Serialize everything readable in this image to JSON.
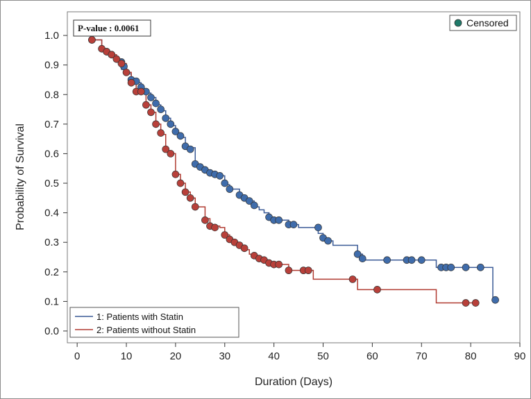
{
  "chart_data": {
    "type": "line",
    "subtype": "kaplan-meier",
    "xlabel": "Duration (Days)",
    "ylabel": "Probability of Survival",
    "xlim": [
      -2,
      90
    ],
    "ylim": [
      -0.04,
      1.08
    ],
    "x_ticks": [
      0,
      10,
      20,
      30,
      40,
      50,
      60,
      70,
      80,
      90
    ],
    "y_ticks": [
      0.0,
      0.1,
      0.2,
      0.3,
      0.4,
      0.5,
      0.6,
      0.7,
      0.8,
      0.9,
      1.0
    ],
    "annotation": "P-value : 0.0061",
    "censored_legend": "Censored",
    "censored_color": "#1f7a6a",
    "series": [
      {
        "name": "1: Patients with Statin",
        "color": "#3a5a96",
        "marker_color": "#3f6cab",
        "steps": [
          [
            0,
            1.0
          ],
          [
            3,
            0.985
          ],
          [
            5,
            0.955
          ],
          [
            6,
            0.94
          ],
          [
            7,
            0.93
          ],
          [
            8,
            0.91
          ],
          [
            9,
            0.885
          ],
          [
            10,
            0.87
          ],
          [
            11,
            0.85
          ],
          [
            12,
            0.84
          ],
          [
            13,
            0.82
          ],
          [
            14,
            0.805
          ],
          [
            15,
            0.79
          ],
          [
            16,
            0.765
          ],
          [
            17,
            0.745
          ],
          [
            18,
            0.72
          ],
          [
            19,
            0.695
          ],
          [
            20,
            0.67
          ],
          [
            21,
            0.655
          ],
          [
            22,
            0.62
          ],
          [
            24,
            0.565
          ],
          [
            25,
            0.555
          ],
          [
            26,
            0.54
          ],
          [
            27,
            0.53
          ],
          [
            29,
            0.525
          ],
          [
            30,
            0.495
          ],
          [
            31,
            0.48
          ],
          [
            33,
            0.46
          ],
          [
            34,
            0.45
          ],
          [
            35,
            0.44
          ],
          [
            36,
            0.42
          ],
          [
            37,
            0.41
          ],
          [
            38,
            0.4
          ],
          [
            39,
            0.385
          ],
          [
            40,
            0.375
          ],
          [
            43,
            0.36
          ],
          [
            45,
            0.35
          ],
          [
            49,
            0.33
          ],
          [
            50,
            0.305
          ],
          [
            52,
            0.29
          ],
          [
            57,
            0.26
          ],
          [
            58,
            0.24
          ],
          [
            73,
            0.215
          ],
          [
            82,
            0.215
          ],
          [
            84.5,
            0.105
          ],
          [
            85,
            0.105
          ]
        ],
        "censored": [
          [
            3,
            0.985
          ],
          [
            6,
            0.945
          ],
          [
            7,
            0.935
          ],
          [
            9,
            0.91
          ],
          [
            9.5,
            0.895
          ],
          [
            11,
            0.85
          ],
          [
            12,
            0.845
          ],
          [
            13,
            0.825
          ],
          [
            14,
            0.81
          ],
          [
            15,
            0.79
          ],
          [
            16,
            0.77
          ],
          [
            17,
            0.75
          ],
          [
            18,
            0.72
          ],
          [
            19,
            0.7
          ],
          [
            20,
            0.675
          ],
          [
            21,
            0.66
          ],
          [
            22,
            0.625
          ],
          [
            23,
            0.615
          ],
          [
            24,
            0.565
          ],
          [
            25,
            0.555
          ],
          [
            26,
            0.545
          ],
          [
            27,
            0.535
          ],
          [
            28,
            0.53
          ],
          [
            29,
            0.525
          ],
          [
            30,
            0.5
          ],
          [
            31,
            0.48
          ],
          [
            33,
            0.46
          ],
          [
            34,
            0.45
          ],
          [
            35,
            0.44
          ],
          [
            36,
            0.425
          ],
          [
            39,
            0.385
          ],
          [
            40,
            0.375
          ],
          [
            41,
            0.375
          ],
          [
            43,
            0.36
          ],
          [
            44,
            0.36
          ],
          [
            49,
            0.35
          ],
          [
            50,
            0.315
          ],
          [
            51,
            0.305
          ],
          [
            57,
            0.26
          ],
          [
            58,
            0.245
          ],
          [
            63,
            0.24
          ],
          [
            67,
            0.24
          ],
          [
            68,
            0.24
          ],
          [
            70,
            0.24
          ],
          [
            74,
            0.215
          ],
          [
            75,
            0.215
          ],
          [
            76,
            0.215
          ],
          [
            79,
            0.215
          ],
          [
            82,
            0.215
          ],
          [
            85,
            0.105
          ]
        ]
      },
      {
        "name": "2: Patients without Statin",
        "color": "#b03a30",
        "marker_color": "#b8403a",
        "steps": [
          [
            0,
            1.0
          ],
          [
            3,
            0.985
          ],
          [
            5,
            0.955
          ],
          [
            6,
            0.945
          ],
          [
            7,
            0.935
          ],
          [
            8,
            0.92
          ],
          [
            9,
            0.905
          ],
          [
            10,
            0.875
          ],
          [
            11,
            0.835
          ],
          [
            12,
            0.81
          ],
          [
            14,
            0.765
          ],
          [
            15,
            0.74
          ],
          [
            16,
            0.7
          ],
          [
            17,
            0.665
          ],
          [
            18,
            0.61
          ],
          [
            19,
            0.6
          ],
          [
            20,
            0.53
          ],
          [
            21,
            0.5
          ],
          [
            22,
            0.47
          ],
          [
            23,
            0.45
          ],
          [
            24,
            0.42
          ],
          [
            26,
            0.38
          ],
          [
            27,
            0.355
          ],
          [
            29,
            0.35
          ],
          [
            30,
            0.325
          ],
          [
            31,
            0.31
          ],
          [
            32,
            0.295
          ],
          [
            33,
            0.285
          ],
          [
            34,
            0.275
          ],
          [
            35,
            0.26
          ],
          [
            36,
            0.25
          ],
          [
            37,
            0.24
          ],
          [
            38,
            0.235
          ],
          [
            39,
            0.225
          ],
          [
            41,
            0.225
          ],
          [
            43,
            0.205
          ],
          [
            46,
            0.205
          ],
          [
            48,
            0.175
          ],
          [
            57,
            0.14
          ],
          [
            73,
            0.095
          ],
          [
            81,
            0.095
          ]
        ],
        "censored": [
          [
            3,
            0.985
          ],
          [
            5,
            0.955
          ],
          [
            6,
            0.945
          ],
          [
            7,
            0.935
          ],
          [
            8,
            0.92
          ],
          [
            9,
            0.905
          ],
          [
            10,
            0.875
          ],
          [
            11,
            0.84
          ],
          [
            12,
            0.81
          ],
          [
            13,
            0.81
          ],
          [
            14,
            0.765
          ],
          [
            15,
            0.74
          ],
          [
            16,
            0.7
          ],
          [
            17,
            0.67
          ],
          [
            18,
            0.615
          ],
          [
            19,
            0.6
          ],
          [
            20,
            0.53
          ],
          [
            21,
            0.5
          ],
          [
            22,
            0.47
          ],
          [
            23,
            0.45
          ],
          [
            24,
            0.42
          ],
          [
            26,
            0.375
          ],
          [
            27,
            0.355
          ],
          [
            28,
            0.35
          ],
          [
            30,
            0.325
          ],
          [
            31,
            0.31
          ],
          [
            32,
            0.3
          ],
          [
            33,
            0.29
          ],
          [
            34,
            0.28
          ],
          [
            36,
            0.255
          ],
          [
            37,
            0.245
          ],
          [
            38,
            0.24
          ],
          [
            39,
            0.23
          ],
          [
            40,
            0.225
          ],
          [
            41,
            0.225
          ],
          [
            43,
            0.205
          ],
          [
            46,
            0.205
          ],
          [
            47,
            0.205
          ],
          [
            56,
            0.175
          ],
          [
            61,
            0.14
          ],
          [
            79,
            0.095
          ],
          [
            81,
            0.095
          ]
        ]
      }
    ]
  }
}
